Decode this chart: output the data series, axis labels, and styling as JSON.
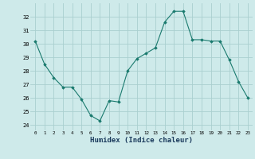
{
  "x": [
    0,
    1,
    2,
    3,
    4,
    5,
    6,
    7,
    8,
    9,
    10,
    11,
    12,
    13,
    14,
    15,
    16,
    17,
    18,
    19,
    20,
    21,
    22,
    23
  ],
  "y": [
    30.2,
    28.5,
    27.5,
    26.8,
    26.8,
    25.9,
    24.7,
    24.3,
    25.8,
    25.7,
    28.0,
    28.9,
    29.3,
    29.7,
    31.6,
    32.4,
    32.4,
    30.3,
    30.3,
    30.2,
    30.2,
    28.8,
    27.2,
    26.0
  ],
  "line_color": "#1a7a6e",
  "marker": "D",
  "marker_size": 1.8,
  "bg_color": "#ceeaea",
  "grid_color": "#aacfcf",
  "xlabel": "Humidex (Indice chaleur)",
  "xlabel_fontsize": 6.5,
  "ytick_labels": [
    "24",
    "25",
    "26",
    "27",
    "28",
    "29",
    "30",
    "31",
    "32"
  ],
  "yticks": [
    24,
    25,
    26,
    27,
    28,
    29,
    30,
    31,
    32
  ],
  "ylim": [
    23.6,
    33.0
  ],
  "xlim": [
    -0.5,
    23.5
  ]
}
